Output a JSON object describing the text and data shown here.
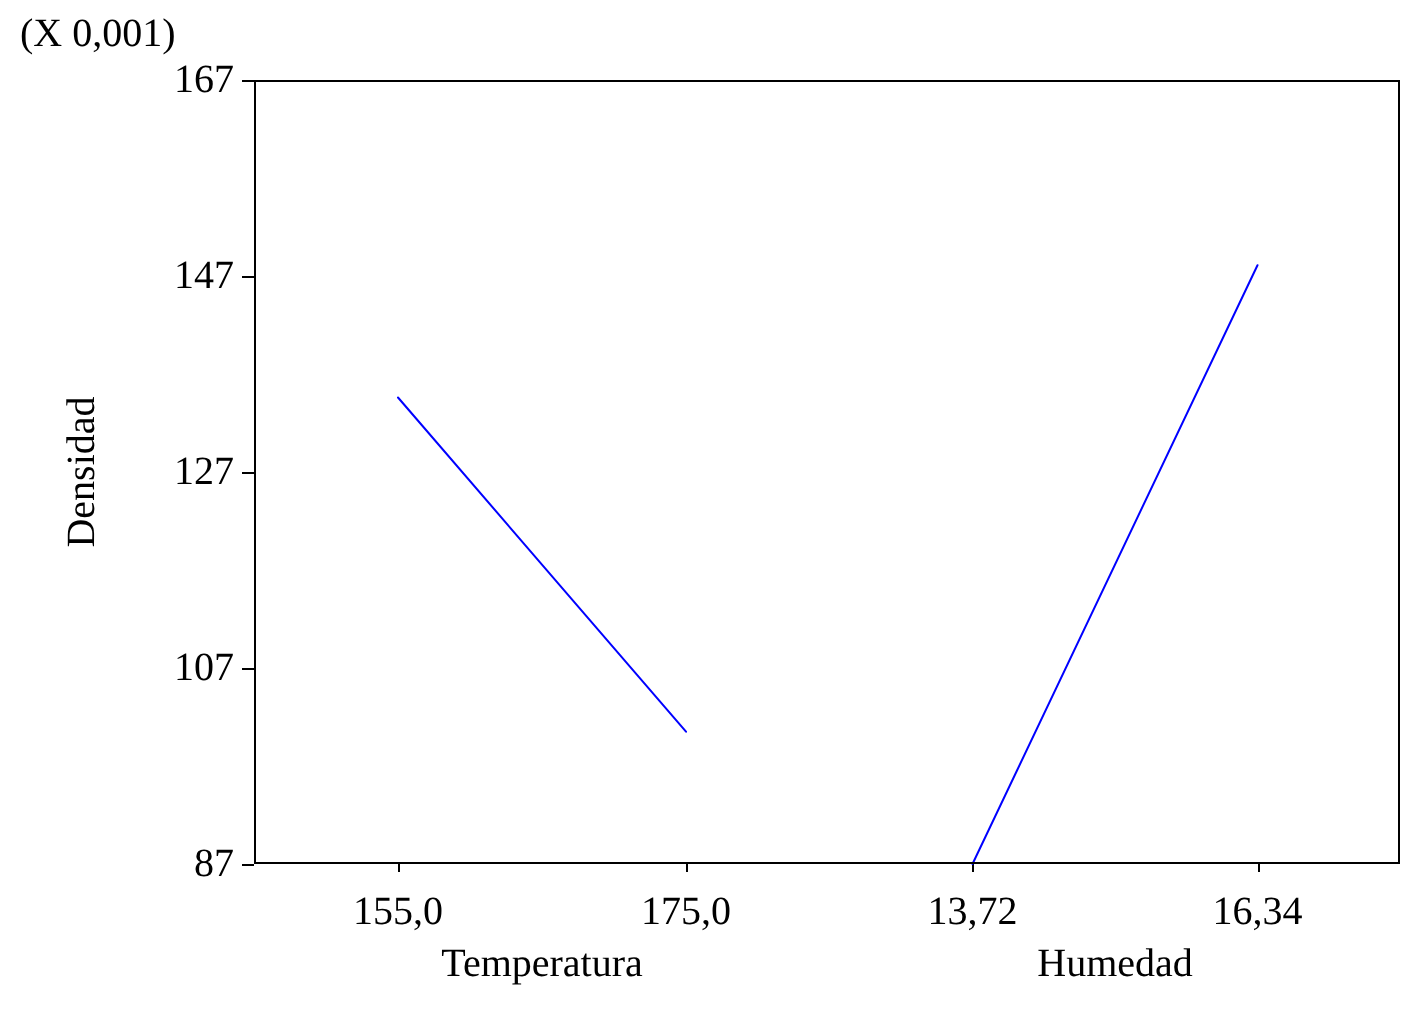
{
  "chart_data": [
    {
      "type": "line",
      "xlabel": "Temperatura",
      "ylabel": "Densidad",
      "annotations": [
        "(X 0,001)"
      ],
      "categories": [
        "155,0",
        "175,0"
      ],
      "series": [
        {
          "color": "#0000ff",
          "values": [
            134.6,
            100.5
          ]
        }
      ],
      "ylim": [
        87,
        167
      ],
      "yticks": [
        87,
        107,
        127,
        147,
        167
      ],
      "grid": false,
      "marker": "none",
      "line_style": "solid"
    },
    {
      "type": "line",
      "xlabel": "Humedad",
      "categories": [
        "13,72",
        "16,34"
      ],
      "series": [
        {
          "color": "#0000ff",
          "values": [
            87,
            148.1
          ]
        }
      ],
      "ylim": [
        87,
        167
      ],
      "yticks": [
        87,
        107,
        127,
        147,
        167
      ],
      "grid": false,
      "marker": "none",
      "line_style": "solid",
      "tick_labels": "x"
    }
  ]
}
